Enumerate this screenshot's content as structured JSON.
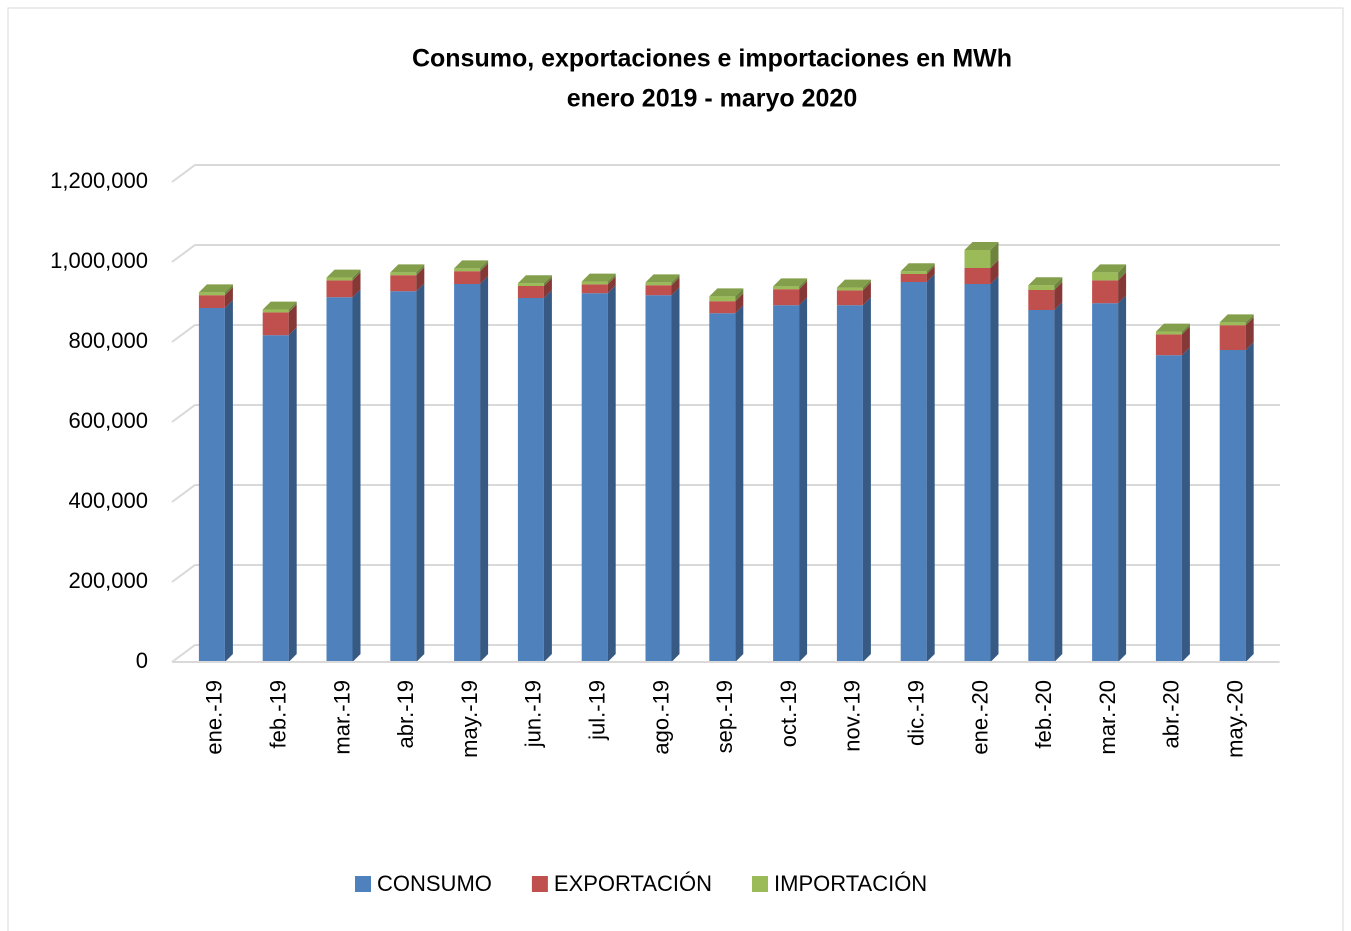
{
  "chart_data": {
    "type": "bar3d_stacked",
    "title": "Consumo, exportaciones e importaciones en MWh",
    "subtitle": "enero  2019   -   maryo  2020",
    "categories": [
      "ene.-19",
      "feb.-19",
      "mar.-19",
      "abr.-19",
      "may.-19",
      "jun.-19",
      "jul.-19",
      "ago.-19",
      "sep.-19",
      "oct.-19",
      "nov.-19",
      "dic.-19",
      "ene.-20",
      "feb.-20",
      "mar.-20",
      "abr.-20",
      "may.-20"
    ],
    "series": [
      {
        "name": "CONSUMO",
        "color": "#4f81bd",
        "values": [
          885000,
          817000,
          912000,
          927000,
          945000,
          910000,
          922000,
          917000,
          872000,
          892000,
          892000,
          950000,
          945000,
          880000,
          897000,
          767000,
          780000
        ]
      },
      {
        "name": "EXPORTACIÓN",
        "color": "#c0504d",
        "values": [
          32000,
          57000,
          42000,
          40000,
          32000,
          30000,
          22000,
          25000,
          30000,
          40000,
          37000,
          20000,
          40000,
          50000,
          57000,
          52000,
          62000
        ]
      },
      {
        "name": "IMPORTACIÓN",
        "color": "#9bbb59",
        "values": [
          7000,
          7000,
          7000,
          7000,
          7000,
          7000,
          7000,
          7000,
          12000,
          7000,
          7000,
          7000,
          45000,
          12000,
          20000,
          7000,
          7000
        ]
      }
    ],
    "ylim": [
      0,
      1200000
    ],
    "yticks": [
      0,
      {
        "value": 200000,
        "label": "200,000"
      },
      {
        "value": 400000,
        "label": "400,000"
      },
      {
        "value": 600000,
        "label": "600,000"
      },
      {
        "value": 800000,
        "label": "800,000"
      },
      {
        "value": 1000000,
        "label": "1,000,000"
      },
      {
        "value": 1200000,
        "label": "1,200,000"
      }
    ],
    "grid": true,
    "legend": "bottom"
  }
}
